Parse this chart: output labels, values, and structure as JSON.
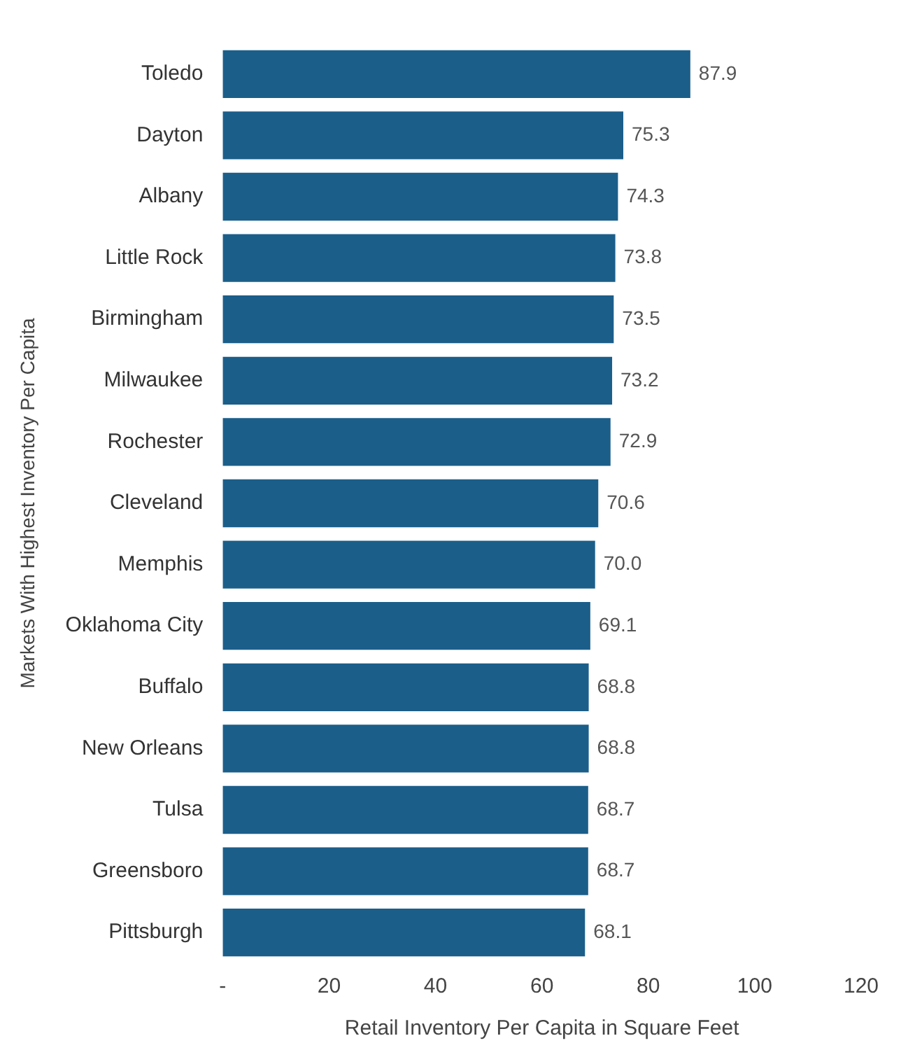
{
  "chart_data": {
    "type": "bar",
    "orientation": "horizontal",
    "xlabel": "Retail Inventory Per Capita in Square Feet",
    "ylabel": "Markets With Highest Inventory Per Capita",
    "categories": [
      "Toledo",
      "Dayton",
      "Albany",
      "Little Rock",
      "Birmingham",
      "Milwaukee",
      "Rochester",
      "Cleveland",
      "Memphis",
      "Oklahoma City",
      "Buffalo",
      "New Orleans",
      "Tulsa",
      "Greensboro",
      "Pittsburgh"
    ],
    "values": [
      87.9,
      75.3,
      74.3,
      73.8,
      73.5,
      73.2,
      72.9,
      70.6,
      70.0,
      69.1,
      68.8,
      68.8,
      68.7,
      68.7,
      68.1
    ],
    "value_labels": [
      "87.9",
      "75.3",
      "74.3",
      "73.8",
      "73.5",
      "73.2",
      "72.9",
      "70.6",
      "70.0",
      "69.1",
      "68.8",
      "68.8",
      "68.7",
      "68.7",
      "68.1"
    ],
    "color": "#1b5e8a",
    "xlim": [
      0,
      120
    ],
    "xticks": [
      {
        "value": 0,
        "label": "-"
      },
      20,
      40,
      60,
      80,
      100,
      120
    ],
    "grid": false,
    "legend": false
  }
}
